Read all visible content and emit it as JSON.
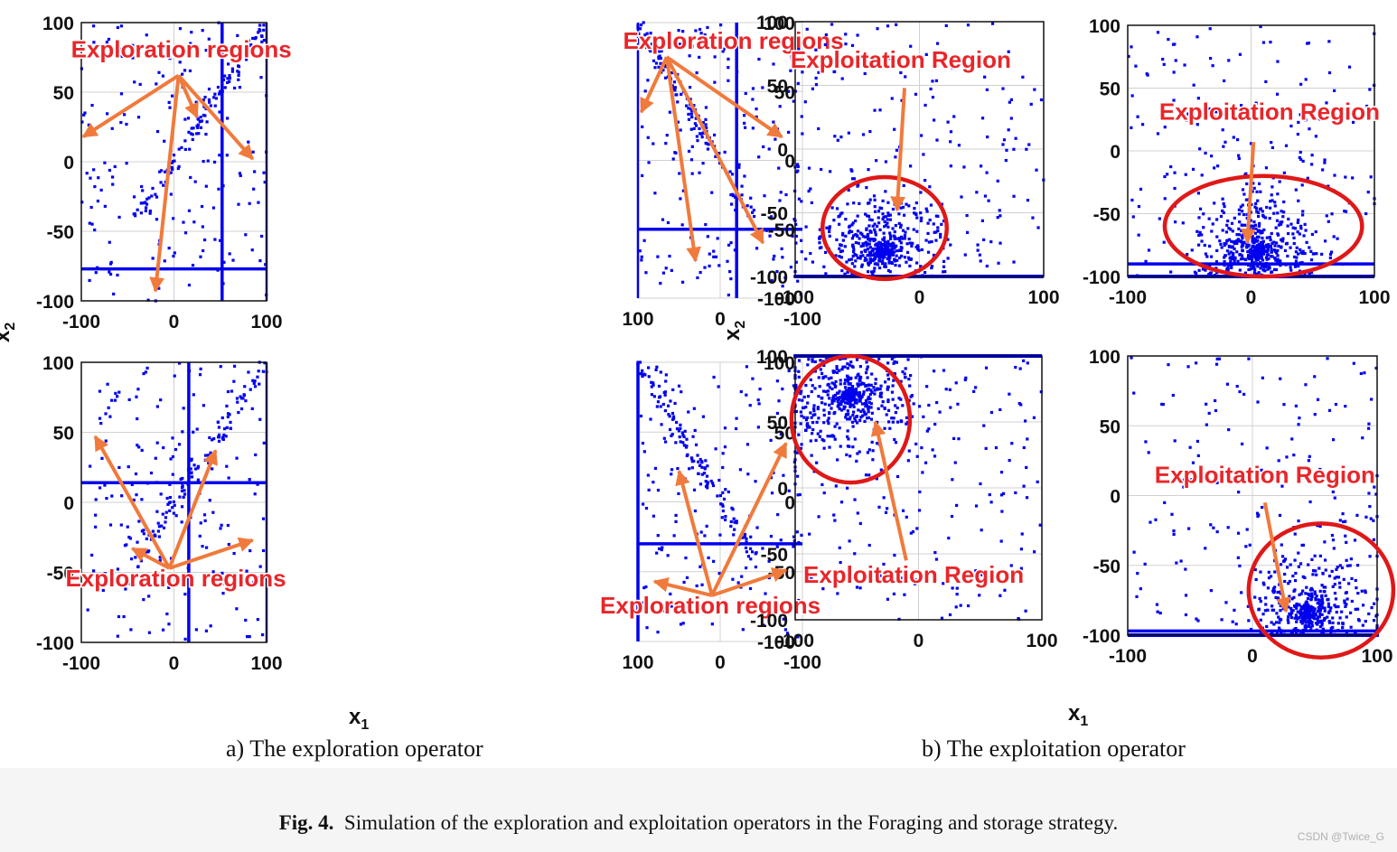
{
  "figure": {
    "number_label": "Fig. 4.",
    "caption": "Simulation of the exploration and exploitation operators in the Foraging and storage strategy.",
    "group_a_caption": "a)  The exploration operator",
    "group_b_caption": "b)  The exploitation operator",
    "xlabel": "x",
    "xlabel_sub": "1",
    "ylabel": "x",
    "ylabel_sub": "2",
    "watermark": "CSDN @Twice_G"
  },
  "colors": {
    "points": "#0000ee",
    "arrow": "#f07a3c",
    "annotation": "#e8262a",
    "ellipse": "#e01818",
    "grid": "#d0d0d0"
  },
  "chart_data": [
    {
      "id": "a1",
      "type": "scatter",
      "group": "a",
      "xlim": [
        -100,
        100
      ],
      "ylim": [
        -100,
        100
      ],
      "xticks": [
        -100,
        0,
        100
      ],
      "yticks": [
        100,
        50,
        0,
        -50,
        -100
      ],
      "grid": true,
      "pattern": "diagonal",
      "hline": -77,
      "vline": 52,
      "annotation": {
        "text": "Exploration regions",
        "x": 8,
        "y": 75
      },
      "arrows": [
        {
          "from": [
            5,
            62
          ],
          "to": [
            -98,
            18
          ]
        },
        {
          "from": [
            5,
            62
          ],
          "to": [
            -20,
            -93
          ]
        },
        {
          "from": [
            5,
            62
          ],
          "to": [
            25,
            32
          ]
        },
        {
          "from": [
            5,
            62
          ],
          "to": [
            85,
            2
          ]
        }
      ],
      "ellipse": null
    },
    {
      "id": "a2",
      "type": "scatter",
      "group": "a",
      "xlim": [
        -100,
        100
      ],
      "ylim": [
        -100,
        100
      ],
      "xticks": [
        -100,
        0,
        100
      ],
      "yticks": [
        100,
        50,
        0,
        -50,
        -100
      ],
      "grid": true,
      "pattern": "diagonal",
      "hline": -50,
      "vline": -20,
      "annotation": {
        "text": "Exploration regions",
        "x": -16,
        "y": 81
      },
      "arrows": [
        {
          "from": [
            65,
            75
          ],
          "to": [
            -75,
            17
          ]
        },
        {
          "from": [
            65,
            75
          ],
          "to": [
            -52,
            -60
          ]
        },
        {
          "from": [
            65,
            75
          ],
          "to": [
            30,
            -73
          ]
        },
        {
          "from": [
            65,
            75
          ],
          "to": [
            96,
            35
          ]
        }
      ],
      "ellipse": null
    },
    {
      "id": "a3",
      "type": "scatter",
      "group": "a",
      "xlim": [
        -100,
        100
      ],
      "ylim": [
        -100,
        100
      ],
      "xticks": [
        -100,
        0,
        100
      ],
      "yticks": [
        100,
        50,
        0,
        -50,
        -100
      ],
      "grid": true,
      "pattern": "diagonal",
      "hline": 14,
      "vline": 16,
      "annotation": {
        "text": "Exploration regions",
        "x": 2,
        "y": -60
      },
      "arrows": [
        {
          "from": [
            -5,
            -47
          ],
          "to": [
            -85,
            47
          ]
        },
        {
          "from": [
            -5,
            -47
          ],
          "to": [
            -45,
            -33
          ]
        },
        {
          "from": [
            -5,
            -47
          ],
          "to": [
            45,
            37
          ]
        },
        {
          "from": [
            -5,
            -47
          ],
          "to": [
            85,
            -27
          ]
        }
      ],
      "ellipse": null
    },
    {
      "id": "a4",
      "type": "scatter",
      "group": "a",
      "xlim": [
        -100,
        100
      ],
      "ylim": [
        -100,
        100
      ],
      "xticks": [
        -100,
        0,
        100
      ],
      "yticks": [
        100,
        50,
        0,
        -50,
        -100
      ],
      "grid": true,
      "pattern": "diagonal",
      "hline": -30,
      "vline": 100,
      "annotation": {
        "text": "Exploration regions",
        "x": 12,
        "y": -80
      },
      "arrows": [
        {
          "from": [
            10,
            -67
          ],
          "to": [
            -80,
            42
          ]
        },
        {
          "from": [
            10,
            -67
          ],
          "to": [
            -80,
            -49
          ]
        },
        {
          "from": [
            10,
            -67
          ],
          "to": [
            50,
            22
          ]
        },
        {
          "from": [
            10,
            -67
          ],
          "to": [
            80,
            -57
          ]
        }
      ],
      "ellipse": null
    },
    {
      "id": "b1",
      "type": "scatter",
      "group": "b",
      "xlim": [
        -100,
        100
      ],
      "ylim": [
        -100,
        100
      ],
      "xticks": [
        -100,
        0,
        100
      ],
      "yticks": [
        100,
        50,
        0,
        -50,
        -100
      ],
      "grid": true,
      "pattern": "cluster",
      "cluster_center": [
        -30,
        -80
      ],
      "hline": null,
      "vline": null,
      "annotation": {
        "text": "Exploitation Region",
        "x": -15,
        "y": 64
      },
      "arrows": [
        {
          "from": [
            -12,
            48
          ],
          "to": [
            -18,
            -48
          ]
        }
      ],
      "ellipse": {
        "cx": -28,
        "cy": -62,
        "rx": 50,
        "ry": 40
      }
    },
    {
      "id": "b2",
      "type": "scatter",
      "group": "b",
      "xlim": [
        -100,
        100
      ],
      "ylim": [
        -100,
        100
      ],
      "xticks": [
        -100,
        0,
        100
      ],
      "yticks": [
        100,
        50,
        0,
        -50,
        -100
      ],
      "grid": true,
      "pattern": "cluster",
      "cluster_center": [
        5,
        -80
      ],
      "hline": -90,
      "vline": null,
      "annotation": {
        "text": "Exploitation Region",
        "x": 15,
        "y": 25
      },
      "arrows": [
        {
          "from": [
            2,
            7
          ],
          "to": [
            -3,
            -73
          ]
        }
      ],
      "ellipse": {
        "cx": 10,
        "cy": -60,
        "rx": 80,
        "ry": 40
      }
    },
    {
      "id": "b3",
      "type": "scatter",
      "group": "b",
      "xlim": [
        -100,
        100
      ],
      "ylim": [
        -100,
        100
      ],
      "xticks": [
        -100,
        0,
        100
      ],
      "yticks": [
        100,
        50,
        0,
        -50,
        -100
      ],
      "grid": true,
      "pattern": "cluster",
      "cluster_center": [
        -55,
        70
      ],
      "hline": null,
      "vline": null,
      "annotation": {
        "text": "Exploitation Region",
        "x": -4,
        "y": -72
      },
      "arrows": [
        {
          "from": [
            -10,
            -55
          ],
          "to": [
            -35,
            50
          ]
        }
      ],
      "ellipse": {
        "cx": -55,
        "cy": 52,
        "rx": 48,
        "ry": 48
      }
    },
    {
      "id": "b4",
      "type": "scatter",
      "group": "b",
      "xlim": [
        -100,
        100
      ],
      "ylim": [
        -100,
        100
      ],
      "xticks": [
        -100,
        0,
        100
      ],
      "yticks": [
        100,
        50,
        0,
        -50,
        -100
      ],
      "grid": true,
      "pattern": "cluster",
      "cluster_center": [
        45,
        -85
      ],
      "hline": -97,
      "vline": null,
      "annotation": {
        "text": "Exploitation Region",
        "x": 10,
        "y": 9
      },
      "arrows": [
        {
          "from": [
            10,
            -5
          ],
          "to": [
            27,
            -83
          ]
        }
      ],
      "ellipse": {
        "cx": 55,
        "cy": -68,
        "rx": 58,
        "ry": 48
      }
    }
  ]
}
